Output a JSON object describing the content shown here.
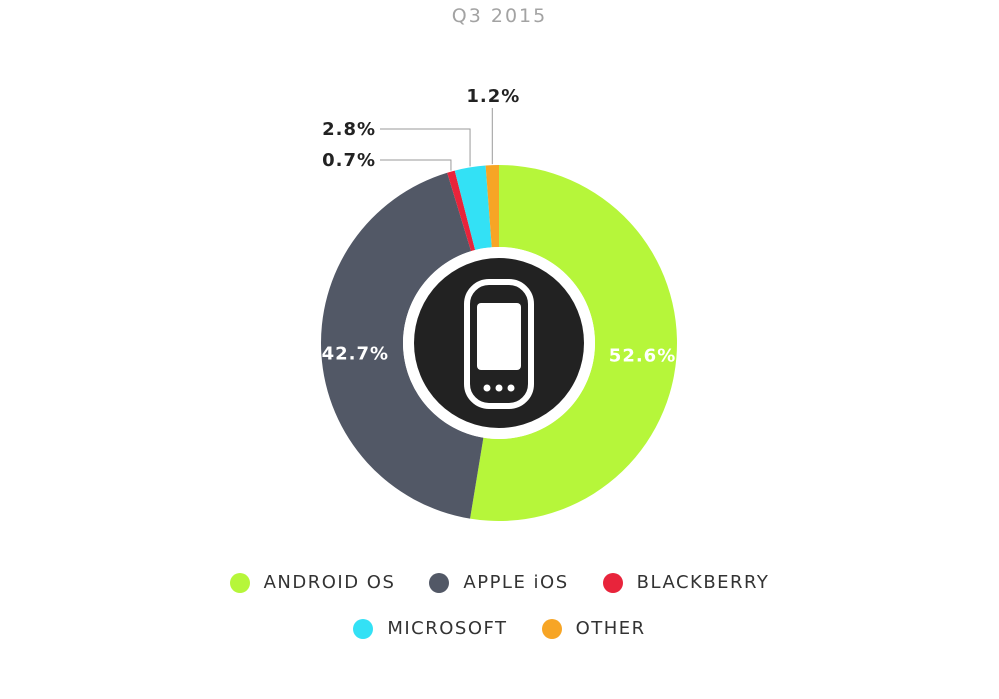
{
  "chart_data": {
    "type": "pie",
    "title": "Q3 2015",
    "labels": [
      "ANDROID OS",
      "APPLE iOS",
      "BLACKBERRY",
      "MICROSOFT",
      "OTHER"
    ],
    "values": [
      52.6,
      42.7,
      0.7,
      2.8,
      1.2
    ],
    "value_labels": [
      "52.6%",
      "42.7%",
      "0.7%",
      "2.8%",
      "1.2%"
    ],
    "colors": [
      "#b6f63a",
      "#525866",
      "#e8243b",
      "#33e1f5",
      "#f7a525"
    ],
    "legend_position": "bottom",
    "center_icon": "smartphone-icon"
  },
  "legend": {
    "android": "ANDROID OS",
    "apple": "APPLE iOS",
    "blackberry": "BLACKBERRY",
    "microsoft": "MICROSOFT",
    "other": "OTHER"
  }
}
